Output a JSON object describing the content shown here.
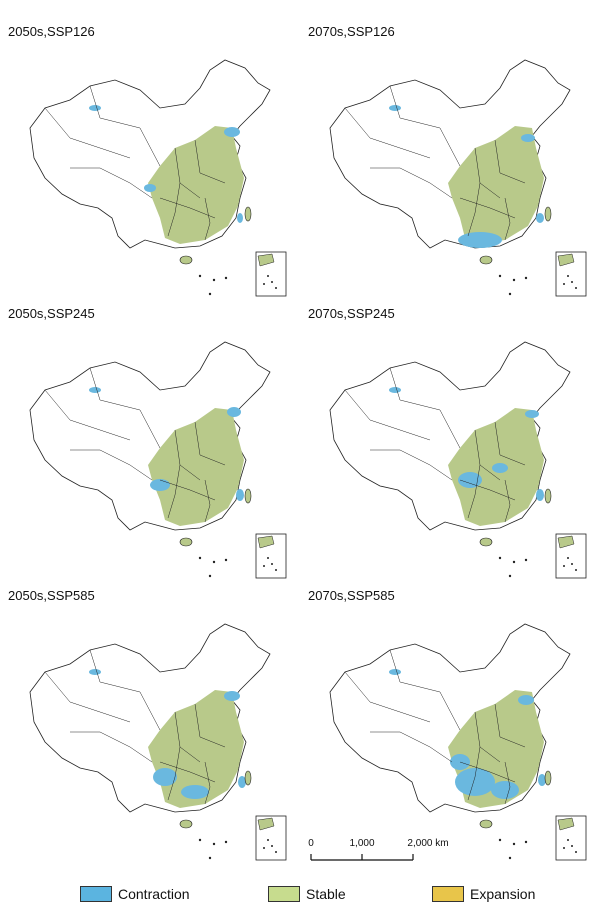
{
  "panels": [
    {
      "title": "2050s,SSP126"
    },
    {
      "title": "2070s,SSP126"
    },
    {
      "title": "2050s,SSP245"
    },
    {
      "title": "2070s,SSP245"
    },
    {
      "title": "2050s,SSP585"
    },
    {
      "title": "2070s,SSP585"
    }
  ],
  "scale": {
    "ticks": [
      "0",
      "1,000",
      "2,000 km"
    ]
  },
  "legend": {
    "items": [
      {
        "label": "Contraction",
        "color": "#5bb4e0"
      },
      {
        "label": "Stable",
        "color": "#c7dc8e"
      },
      {
        "label": "Expansion",
        "color": "#e8c54a"
      }
    ]
  },
  "colors": {
    "outline": "#222222",
    "stable_fill": "#b8c98a",
    "contraction_fill": "#6ab8df"
  }
}
